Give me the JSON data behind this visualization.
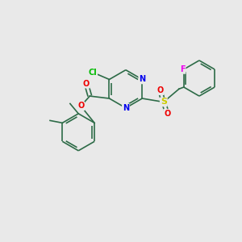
{
  "background_color": "#e9e9e9",
  "bond_color": "#2d6b47",
  "atom_colors": {
    "Cl": "#00bb00",
    "N": "#0000ee",
    "O": "#ee0000",
    "S": "#cccc00",
    "F": "#ee00ee",
    "C": "#2d6b47"
  },
  "figsize": [
    3.0,
    3.0
  ],
  "dpi": 100,
  "lw": 1.2
}
